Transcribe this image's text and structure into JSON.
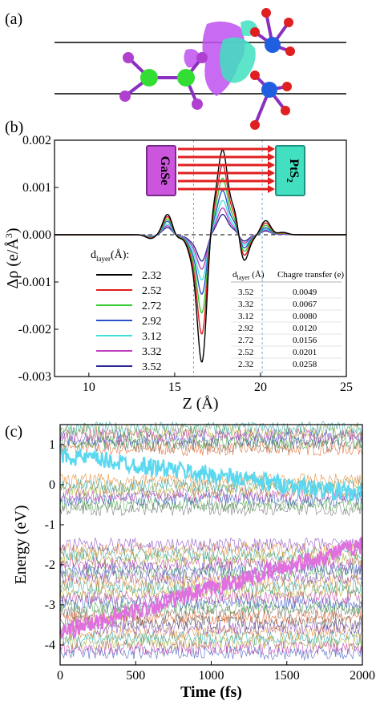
{
  "panel_labels": {
    "a": "(a)",
    "b": "(b)",
    "c": "(c)"
  },
  "structure": {
    "description_free": true,
    "atom_colors": {
      "ga": "#33dd33",
      "se": "#b040d0",
      "pt": "#2060e0",
      "s": "#e02020"
    },
    "isosurface_colors": {
      "accumulation": "#c050f0",
      "depletion": "#40e0c0"
    }
  },
  "labels": {
    "gase": "GaSe",
    "pts2_main": "PtS",
    "pts2_sub": "2"
  },
  "axes_b": {
    "ylabel_main": "Δρ (e/Å",
    "ylabel_sup": "3",
    "ylabel_end": ")",
    "xlabel": "Z (Å)"
  },
  "axes_c": {
    "ylabel": "Energy (eV)",
    "xlabel": "Time (fs)"
  },
  "legend_b": {
    "title_main": "d",
    "title_sub": "layer",
    "title_end": "(Å):",
    "entries": [
      "2.32",
      "2.52",
      "2.72",
      "2.92",
      "3.12",
      "3.32",
      "3.52"
    ]
  },
  "inset_table": {
    "header_d_main": "d",
    "header_d_sub": "layer",
    "header_d_end": " (Å)",
    "header_c": "Chagre transfer (e)",
    "rows": [
      [
        "3.52",
        "0.0049"
      ],
      [
        "3.32",
        "0.0067"
      ],
      [
        "3.12",
        "0.0080"
      ],
      [
        "2.92",
        "0.0120"
      ],
      [
        "2.72",
        "0.0156"
      ],
      [
        "2.52",
        "0.0201"
      ],
      [
        "2.32",
        "0.0258"
      ]
    ]
  },
  "chart_data": [
    {
      "type": "line",
      "panel": "b",
      "xlabel": "Z (Å)",
      "ylabel": "Δρ (e/Å3)",
      "xlim": [
        8,
        25
      ],
      "ylim": [
        -0.003,
        0.002
      ],
      "xticks": [
        "10",
        "15",
        "20",
        "25"
      ],
      "yticks": [
        "0.002",
        "0.001",
        "0.000",
        "-0.001",
        "-0.002",
        "-0.003"
      ],
      "grid": false,
      "legend_placement": "lower-left",
      "vertical_dashed_lines": [
        16.1,
        20.1
      ],
      "series": [
        {
          "name": "2.32",
          "color": "#000000",
          "features": [
            [
              13.6,
              -8e-05
            ],
            [
              14.6,
              0.00045
            ],
            [
              15.1,
              -0.0001
            ],
            [
              16.0,
              -0.0004
            ],
            [
              16.6,
              -0.0027
            ],
            [
              17.2,
              0.0005
            ],
            [
              17.8,
              0.00172
            ],
            [
              18.5,
              0.00055
            ],
            [
              19.0,
              -0.00062
            ],
            [
              19.6,
              -5e-05
            ],
            [
              20.3,
              0.0003
            ],
            [
              21.3,
              5e-05
            ]
          ]
        },
        {
          "name": "2.52",
          "color": "#e01b1b",
          "features": [
            [
              13.6,
              -7e-05
            ],
            [
              14.6,
              0.0004
            ],
            [
              15.1,
              -9e-05
            ],
            [
              16.0,
              -0.00035
            ],
            [
              16.6,
              -0.0021
            ],
            [
              17.2,
              0.0004
            ],
            [
              17.8,
              0.00142
            ],
            [
              18.5,
              0.00045
            ],
            [
              19.0,
              -0.0005
            ],
            [
              19.6,
              -4e-05
            ],
            [
              20.3,
              0.00025
            ],
            [
              21.3,
              4e-05
            ]
          ]
        },
        {
          "name": "2.72",
          "color": "#33cc33",
          "features": [
            [
              13.6,
              -6e-05
            ],
            [
              14.6,
              0.00035
            ],
            [
              15.1,
              -8e-05
            ],
            [
              16.0,
              -0.0003
            ],
            [
              16.6,
              -0.00165
            ],
            [
              17.2,
              0.0003
            ],
            [
              17.8,
              0.00115
            ],
            [
              18.5,
              0.00035
            ],
            [
              19.0,
              -0.0004
            ],
            [
              19.6,
              -3e-05
            ],
            [
              20.3,
              0.0002
            ],
            [
              21.3,
              3e-05
            ]
          ]
        },
        {
          "name": "2.92",
          "color": "#2a52c8",
          "features": [
            [
              13.6,
              -5e-05
            ],
            [
              14.6,
              0.0003
            ],
            [
              15.1,
              -7e-05
            ],
            [
              16.0,
              -0.00025
            ],
            [
              16.6,
              -0.00125
            ],
            [
              17.2,
              0.00022
            ],
            [
              17.8,
              0.0009
            ],
            [
              18.5,
              0.00028
            ],
            [
              19.0,
              -0.00032
            ],
            [
              19.6,
              -2e-05
            ],
            [
              20.3,
              0.00015
            ],
            [
              21.3,
              2e-05
            ]
          ]
        },
        {
          "name": "3.12",
          "color": "#40e0e0",
          "features": [
            [
              13.6,
              -4e-05
            ],
            [
              14.6,
              0.00024
            ],
            [
              15.1,
              -6e-05
            ],
            [
              16.0,
              -0.0002
            ],
            [
              16.6,
              -0.00095
            ],
            [
              17.2,
              0.00015
            ],
            [
              17.8,
              0.0007
            ],
            [
              18.5,
              0.0002
            ],
            [
              19.0,
              -0.00025
            ],
            [
              19.6,
              -2e-05
            ],
            [
              20.3,
              0.00012
            ],
            [
              21.3,
              2e-05
            ]
          ]
        },
        {
          "name": "3.32",
          "color": "#c040c0",
          "features": [
            [
              13.6,
              -3e-05
            ],
            [
              14.6,
              0.0002
            ],
            [
              15.1,
              -5e-05
            ],
            [
              16.0,
              -0.00016
            ],
            [
              16.6,
              -0.00072
            ],
            [
              17.2,
              0.0001
            ],
            [
              17.8,
              0.00055
            ],
            [
              18.5,
              0.00015
            ],
            [
              19.0,
              -0.0002
            ],
            [
              19.6,
              -1e-05
            ],
            [
              20.3,
              0.0001
            ],
            [
              21.3,
              1e-05
            ]
          ]
        },
        {
          "name": "3.52",
          "color": "#2a2a90",
          "features": [
            [
              13.6,
              -3e-05
            ],
            [
              14.6,
              0.00016
            ],
            [
              15.1,
              -4e-05
            ],
            [
              16.0,
              -0.00012
            ],
            [
              16.6,
              -0.00055
            ],
            [
              17.2,
              6e-05
            ],
            [
              17.8,
              0.00042
            ],
            [
              18.5,
              0.00011
            ],
            [
              19.0,
              -0.00015
            ],
            [
              19.6,
              -1e-05
            ],
            [
              20.3,
              8e-05
            ],
            [
              21.3,
              1e-05
            ]
          ]
        }
      ]
    },
    {
      "type": "line",
      "panel": "c",
      "xlabel": "Time (fs)",
      "ylabel": "Energy (eV)",
      "xlim": [
        0,
        2000
      ],
      "ylim": [
        -4.5,
        1.5
      ],
      "xticks": [
        "0",
        "500",
        "1000",
        "1500",
        "2000"
      ],
      "yticks": [
        "1",
        "0",
        "-1",
        "-2",
        "-3",
        "-4"
      ],
      "grid": false,
      "highlighted_series": [
        {
          "color": "#5ad8f0",
          "start": [
            0,
            0.75
          ],
          "end": [
            2000,
            -0.25
          ]
        },
        {
          "color": "#e070e0",
          "start": [
            0,
            -3.7
          ],
          "end": [
            2000,
            -1.5
          ]
        }
      ],
      "band_groups": [
        {
          "range": [
            0.9,
            1.4
          ]
        },
        {
          "range": [
            -0.6,
            0.1
          ]
        },
        {
          "range": [
            -2.2,
            -1.5
          ]
        },
        {
          "range": [
            -4.2,
            -2.3
          ]
        }
      ]
    }
  ]
}
